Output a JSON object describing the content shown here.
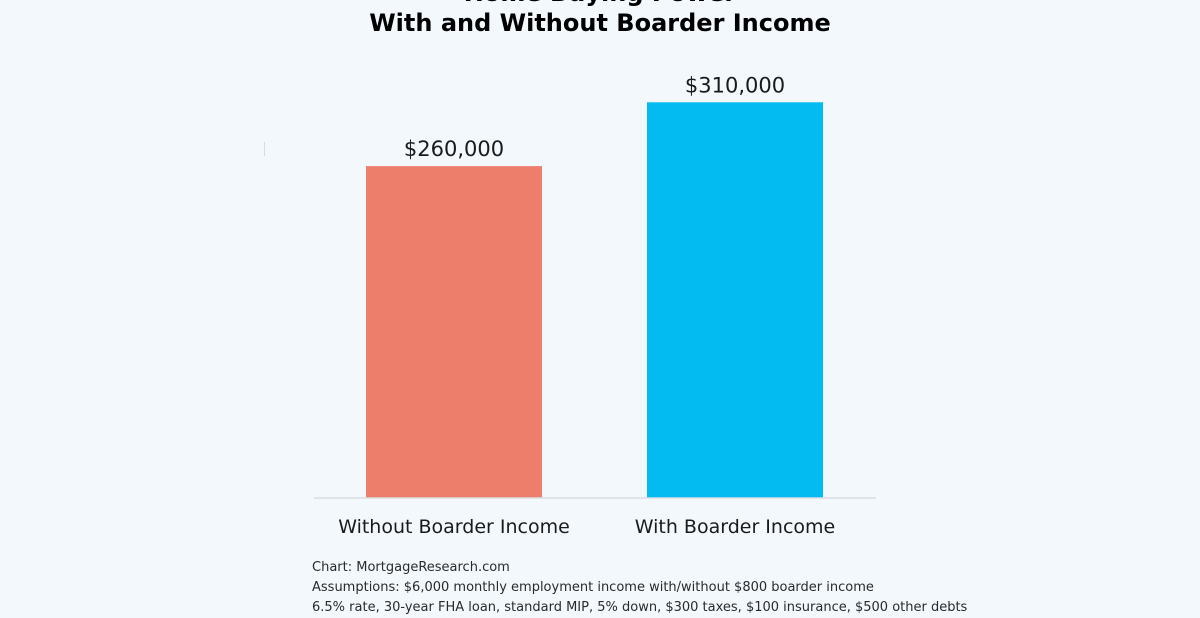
{
  "chart_data": {
    "type": "bar",
    "title_partial": "Home Buying Power",
    "title": "With and Without Boarder Income",
    "categories": [
      "Without Boarder Income",
      "With Boarder Income"
    ],
    "values": [
      260000,
      310000
    ],
    "data_labels": [
      "$260,000",
      "$310,000"
    ],
    "colors": [
      "#ec7e6b",
      "#03bbf1"
    ],
    "xlabel": "",
    "ylabel": "",
    "ylim": [
      0,
      340000
    ],
    "grid": false,
    "legend": "none"
  },
  "footer": {
    "source": "Chart: MortgageResearch.com",
    "assumptions": "Assumptions: $6,000 monthly employment income with/without $800 boarder income",
    "assumptions_cont": "6.5% rate, 30-year FHA loan, standard MIP, 5% down, $300 taxes, $100 insurance, $500 other debts"
  }
}
